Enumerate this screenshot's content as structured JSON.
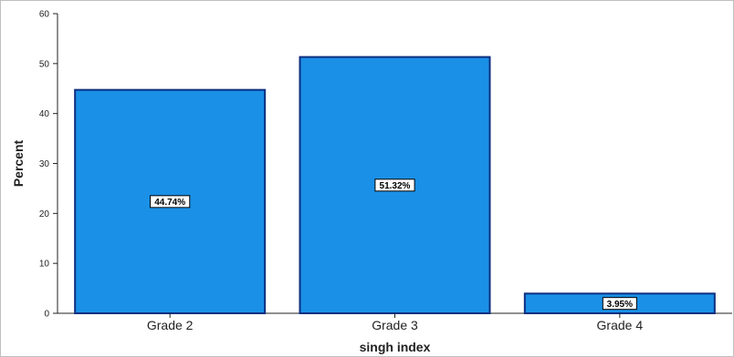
{
  "chart_data": {
    "type": "bar",
    "categories": [
      "Grade 2",
      "Grade 3",
      "Grade 4"
    ],
    "values": [
      44.74,
      51.32,
      3.95
    ],
    "data_labels": [
      "44.74%",
      "51.32%",
      "3.95%"
    ],
    "xlabel": "singh index",
    "ylabel": "Percent",
    "ylim": [
      0,
      60
    ],
    "yticks": [
      0,
      10,
      20,
      30,
      40,
      50,
      60
    ],
    "grid": false,
    "legend": "none",
    "colors": {
      "bar_fill": "#1a90e6",
      "bar_stroke": "#0d2f80",
      "axis": "#222222"
    }
  }
}
